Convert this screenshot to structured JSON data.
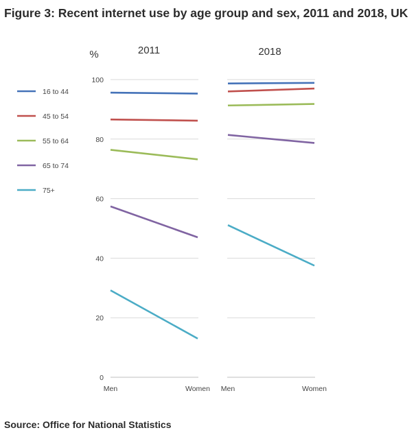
{
  "title": "Figure 3: Recent internet use by age group and sex, 2011 and 2018, UK",
  "source": "Source: Office for National Statistics",
  "chart_data": {
    "type": "line",
    "ylabel": "%",
    "ylim": [
      0,
      100
    ],
    "yticks": [
      0,
      20,
      40,
      60,
      80,
      100
    ],
    "categories": [
      "Men",
      "Women"
    ],
    "grid": true,
    "legend_position": "left",
    "panels": [
      {
        "title": "2011",
        "series": [
          {
            "name": "16 to 44",
            "color": "#4472b8",
            "values": [
              95.6,
              95.3
            ]
          },
          {
            "name": "45 to 54",
            "color": "#c0504d",
            "values": [
              86.6,
              86.2
            ]
          },
          {
            "name": "55 to 64",
            "color": "#9bbb59",
            "values": [
              76.4,
              73.2
            ]
          },
          {
            "name": "65 to 74",
            "color": "#8064a2",
            "values": [
              57.4,
              47.0
            ]
          },
          {
            "name": "75+",
            "color": "#4bacc6",
            "values": [
              29.2,
              13.0
            ]
          }
        ]
      },
      {
        "title": "2018",
        "series": [
          {
            "name": "16 to 44",
            "color": "#4472b8",
            "values": [
              98.7,
              98.9
            ]
          },
          {
            "name": "45 to 54",
            "color": "#c0504d",
            "values": [
              96.0,
              97.0
            ]
          },
          {
            "name": "55 to 64",
            "color": "#9bbb59",
            "values": [
              91.3,
              91.8
            ]
          },
          {
            "name": "65 to 74",
            "color": "#8064a2",
            "values": [
              81.4,
              78.7
            ]
          },
          {
            "name": "75+",
            "color": "#4bacc6",
            "values": [
              51.1,
              37.5
            ]
          }
        ]
      }
    ]
  }
}
